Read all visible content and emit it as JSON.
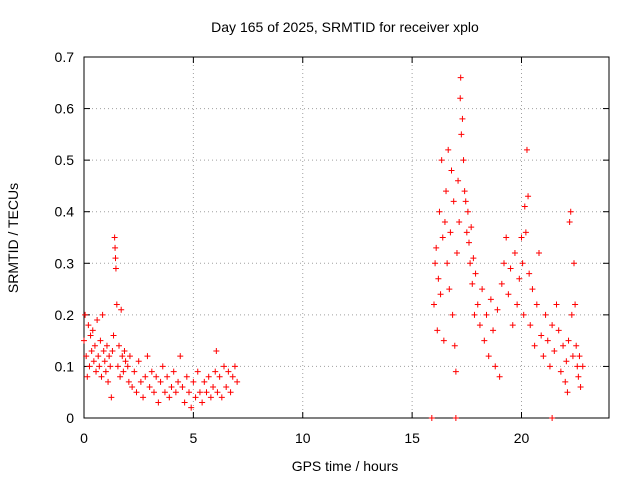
{
  "chart_data": {
    "type": "scatter",
    "title": "Day 165 of 2025, SRMTID for receiver xplo",
    "xlabel": "GPS time / hours",
    "ylabel": "SRMTID / TECUs",
    "xlim": [
      0,
      24
    ],
    "ylim": [
      0,
      0.7
    ],
    "xticks": [
      0,
      5,
      10,
      15,
      20
    ],
    "yticks": [
      0,
      0.1,
      0.2,
      0.3,
      0.4,
      0.5,
      0.6,
      0.7
    ],
    "xtick_labels": [
      "0",
      "5",
      "10",
      "15",
      "20"
    ],
    "ytick_labels": [
      "0",
      "0.1",
      "0.2",
      "0.3",
      "0.4",
      "0.5",
      "0.6",
      "0.7"
    ],
    "grid": true,
    "legend": "none",
    "marker": "+",
    "color": "#ff0000",
    "series": [
      {
        "name": "SRMTID",
        "points": [
          [
            0.0,
            0.15
          ],
          [
            0.05,
            0.2
          ],
          [
            0.1,
            0.12
          ],
          [
            0.15,
            0.08
          ],
          [
            0.2,
            0.18
          ],
          [
            0.25,
            0.1
          ],
          [
            0.3,
            0.16
          ],
          [
            0.35,
            0.13
          ],
          [
            0.4,
            0.17
          ],
          [
            0.45,
            0.11
          ],
          [
            0.5,
            0.14
          ],
          [
            0.55,
            0.09
          ],
          [
            0.6,
            0.19
          ],
          [
            0.65,
            0.12
          ],
          [
            0.7,
            0.1
          ],
          [
            0.75,
            0.15
          ],
          [
            0.8,
            0.08
          ],
          [
            0.85,
            0.2
          ],
          [
            0.9,
            0.13
          ],
          [
            0.95,
            0.11
          ],
          [
            1.0,
            0.09
          ],
          [
            1.05,
            0.14
          ],
          [
            1.1,
            0.07
          ],
          [
            1.15,
            0.12
          ],
          [
            1.2,
            0.1
          ],
          [
            1.25,
            0.04
          ],
          [
            1.3,
            0.13
          ],
          [
            1.35,
            0.16
          ],
          [
            1.4,
            0.35
          ],
          [
            1.42,
            0.33
          ],
          [
            1.44,
            0.31
          ],
          [
            1.46,
            0.29
          ],
          [
            1.5,
            0.22
          ],
          [
            1.55,
            0.1
          ],
          [
            1.6,
            0.14
          ],
          [
            1.65,
            0.08
          ],
          [
            1.7,
            0.21
          ],
          [
            1.75,
            0.12
          ],
          [
            1.8,
            0.09
          ],
          [
            1.85,
            0.13
          ],
          [
            1.9,
            0.11
          ],
          [
            2.0,
            0.1
          ],
          [
            2.05,
            0.07
          ],
          [
            2.1,
            0.12
          ],
          [
            2.2,
            0.06
          ],
          [
            2.3,
            0.09
          ],
          [
            2.4,
            0.05
          ],
          [
            2.5,
            0.11
          ],
          [
            2.6,
            0.07
          ],
          [
            2.7,
            0.04
          ],
          [
            2.8,
            0.08
          ],
          [
            2.9,
            0.12
          ],
          [
            3.0,
            0.06
          ],
          [
            3.1,
            0.09
          ],
          [
            3.2,
            0.05
          ],
          [
            3.3,
            0.08
          ],
          [
            3.4,
            0.03
          ],
          [
            3.5,
            0.07
          ],
          [
            3.6,
            0.1
          ],
          [
            3.7,
            0.05
          ],
          [
            3.8,
            0.08
          ],
          [
            3.9,
            0.04
          ],
          [
            4.0,
            0.06
          ],
          [
            4.1,
            0.09
          ],
          [
            4.2,
            0.05
          ],
          [
            4.3,
            0.07
          ],
          [
            4.4,
            0.12
          ],
          [
            4.5,
            0.06
          ],
          [
            4.6,
            0.03
          ],
          [
            4.7,
            0.08
          ],
          [
            4.8,
            0.05
          ],
          [
            4.9,
            0.02
          ],
          [
            5.0,
            0.07
          ],
          [
            5.1,
            0.04
          ],
          [
            5.2,
            0.09
          ],
          [
            5.3,
            0.05
          ],
          [
            5.4,
            0.03
          ],
          [
            5.5,
            0.07
          ],
          [
            5.6,
            0.05
          ],
          [
            5.7,
            0.08
          ],
          [
            5.8,
            0.04
          ],
          [
            5.9,
            0.06
          ],
          [
            6.0,
            0.09
          ],
          [
            6.05,
            0.13
          ],
          [
            6.1,
            0.05
          ],
          [
            6.2,
            0.08
          ],
          [
            6.3,
            0.04
          ],
          [
            6.4,
            0.1
          ],
          [
            6.5,
            0.06
          ],
          [
            6.6,
            0.09
          ],
          [
            6.7,
            0.05
          ],
          [
            6.8,
            0.08
          ],
          [
            6.9,
            0.1
          ],
          [
            7.0,
            0.07
          ],
          [
            15.9,
            0.0
          ],
          [
            17.0,
            0.0
          ],
          [
            21.4,
            0.0
          ],
          [
            16.0,
            0.22
          ],
          [
            16.05,
            0.3
          ],
          [
            16.1,
            0.33
          ],
          [
            16.15,
            0.17
          ],
          [
            16.2,
            0.27
          ],
          [
            16.25,
            0.4
          ],
          [
            16.3,
            0.24
          ],
          [
            16.35,
            0.5
          ],
          [
            16.4,
            0.35
          ],
          [
            16.45,
            0.15
          ],
          [
            16.5,
            0.38
          ],
          [
            16.55,
            0.44
          ],
          [
            16.6,
            0.3
          ],
          [
            16.65,
            0.52
          ],
          [
            16.7,
            0.25
          ],
          [
            16.75,
            0.36
          ],
          [
            16.8,
            0.48
          ],
          [
            16.85,
            0.2
          ],
          [
            16.9,
            0.42
          ],
          [
            16.95,
            0.14
          ],
          [
            17.0,
            0.09
          ],
          [
            17.05,
            0.32
          ],
          [
            17.1,
            0.46
          ],
          [
            17.15,
            0.38
          ],
          [
            17.2,
            0.62
          ],
          [
            17.22,
            0.66
          ],
          [
            17.25,
            0.55
          ],
          [
            17.3,
            0.58
          ],
          [
            17.35,
            0.5
          ],
          [
            17.4,
            0.44
          ],
          [
            17.45,
            0.42
          ],
          [
            17.5,
            0.36
          ],
          [
            17.55,
            0.4
          ],
          [
            17.6,
            0.34
          ],
          [
            17.65,
            0.3
          ],
          [
            17.7,
            0.37
          ],
          [
            17.75,
            0.26
          ],
          [
            17.8,
            0.31
          ],
          [
            17.85,
            0.2
          ],
          [
            17.9,
            0.28
          ],
          [
            18.0,
            0.22
          ],
          [
            18.1,
            0.18
          ],
          [
            18.2,
            0.25
          ],
          [
            18.3,
            0.15
          ],
          [
            18.4,
            0.2
          ],
          [
            18.5,
            0.12
          ],
          [
            18.6,
            0.23
          ],
          [
            18.7,
            0.17
          ],
          [
            18.8,
            0.1
          ],
          [
            18.9,
            0.21
          ],
          [
            19.0,
            0.08
          ],
          [
            19.1,
            0.26
          ],
          [
            19.2,
            0.3
          ],
          [
            19.3,
            0.35
          ],
          [
            19.4,
            0.24
          ],
          [
            19.5,
            0.29
          ],
          [
            19.6,
            0.18
          ],
          [
            19.7,
            0.32
          ],
          [
            19.8,
            0.22
          ],
          [
            19.9,
            0.27
          ],
          [
            20.0,
            0.35
          ],
          [
            20.05,
            0.3
          ],
          [
            20.1,
            0.2
          ],
          [
            20.15,
            0.41
          ],
          [
            20.2,
            0.36
          ],
          [
            20.25,
            0.52
          ],
          [
            20.3,
            0.43
          ],
          [
            20.35,
            0.28
          ],
          [
            20.4,
            0.18
          ],
          [
            20.5,
            0.25
          ],
          [
            20.6,
            0.14
          ],
          [
            20.7,
            0.22
          ],
          [
            20.8,
            0.32
          ],
          [
            20.9,
            0.16
          ],
          [
            21.0,
            0.12
          ],
          [
            21.1,
            0.2
          ],
          [
            21.2,
            0.15
          ],
          [
            21.3,
            0.1
          ],
          [
            21.4,
            0.18
          ],
          [
            21.5,
            0.13
          ],
          [
            21.6,
            0.22
          ],
          [
            21.7,
            0.17
          ],
          [
            21.8,
            0.09
          ],
          [
            21.9,
            0.14
          ],
          [
            22.0,
            0.07
          ],
          [
            22.05,
            0.11
          ],
          [
            22.1,
            0.05
          ],
          [
            22.15,
            0.15
          ],
          [
            22.2,
            0.38
          ],
          [
            22.25,
            0.4
          ],
          [
            22.3,
            0.2
          ],
          [
            22.35,
            0.12
          ],
          [
            22.4,
            0.3
          ],
          [
            22.45,
            0.22
          ],
          [
            22.5,
            0.14
          ],
          [
            22.55,
            0.1
          ],
          [
            22.6,
            0.08
          ],
          [
            22.65,
            0.12
          ],
          [
            22.7,
            0.06
          ],
          [
            22.8,
            0.1
          ]
        ]
      }
    ]
  }
}
